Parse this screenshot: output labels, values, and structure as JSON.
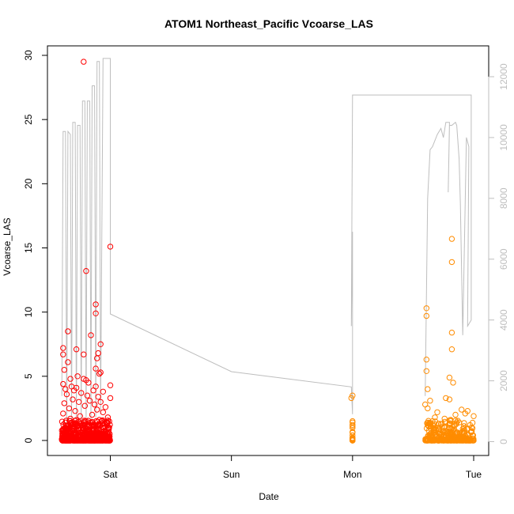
{
  "chart_data": {
    "type": "scatter",
    "title": "ATOM1 Northeast_Pacific Vcoarse_LAS",
    "xlabel": "Date",
    "ylabel": "Vcoarse_LAS",
    "x_ticks": [
      "Sat",
      "Sun",
      "Mon",
      "Tue"
    ],
    "xlim_days": [
      -0.45,
      3.05
    ],
    "ylim": [
      0,
      30
    ],
    "y_ticks": [
      0,
      5,
      10,
      15,
      20,
      25,
      30
    ],
    "y2_ticks": [
      0,
      2000,
      4000,
      6000,
      8000,
      10000,
      12000
    ],
    "y2lim": [
      0,
      12500
    ],
    "grid": false,
    "colors": {
      "series_1": "#ff0000",
      "series_2": "#ff8c00",
      "secondary_line": "#bebebe"
    },
    "series": [
      {
        "color": "#ff0000",
        "marker": "open-circle",
        "axis": "left",
        "x_day_range": [
          -0.4,
          0.0
        ],
        "points": [
          [
            -0.22,
            29.5
          ],
          [
            0.0,
            15.1
          ],
          [
            -0.2,
            13.2
          ],
          [
            -0.12,
            10.6
          ],
          [
            -0.12,
            9.9
          ],
          [
            -0.35,
            8.5
          ],
          [
            -0.16,
            8.2
          ],
          [
            -0.08,
            7.5
          ],
          [
            -0.39,
            7.2
          ],
          [
            -0.28,
            7.1
          ],
          [
            -0.1,
            6.8
          ],
          [
            -0.39,
            6.7
          ],
          [
            -0.22,
            6.7
          ],
          [
            -0.11,
            6.4
          ],
          [
            -0.35,
            6.1
          ],
          [
            -0.12,
            5.6
          ],
          [
            -0.38,
            5.5
          ],
          [
            -0.08,
            5.3
          ],
          [
            -0.09,
            5.2
          ],
          [
            -0.27,
            5.0
          ],
          [
            -0.33,
            4.8
          ],
          [
            -0.22,
            4.8
          ],
          [
            -0.2,
            4.7
          ],
          [
            -0.18,
            4.5
          ],
          [
            -0.39,
            4.4
          ],
          [
            0.0,
            4.3
          ],
          [
            -0.32,
            4.2
          ],
          [
            -0.12,
            4.2
          ],
          [
            -0.28,
            4.1
          ],
          [
            -0.37,
            4.0
          ],
          [
            -0.3,
            3.9
          ],
          [
            -0.14,
            3.9
          ],
          [
            -0.06,
            3.8
          ],
          [
            -0.24,
            3.7
          ],
          [
            -0.36,
            3.6
          ],
          [
            -0.19,
            3.5
          ],
          [
            -0.1,
            3.4
          ],
          [
            0.0,
            3.3
          ],
          [
            -0.31,
            3.2
          ],
          [
            -0.17,
            3.1
          ],
          [
            -0.26,
            3.0
          ],
          [
            -0.08,
            3.0
          ],
          [
            -0.38,
            2.9
          ],
          [
            -0.13,
            2.8
          ],
          [
            -0.21,
            2.7
          ],
          [
            -0.04,
            2.6
          ],
          [
            -0.34,
            2.5
          ],
          [
            -0.11,
            2.4
          ],
          [
            -0.29,
            2.3
          ],
          [
            -0.06,
            2.2
          ],
          [
            -0.39,
            2.1
          ],
          [
            -0.15,
            2.0
          ],
          [
            -0.25,
            1.9
          ],
          [
            -0.02,
            1.8
          ],
          [
            -0.33,
            1.7
          ],
          [
            -0.09,
            1.6
          ],
          [
            -0.2,
            1.5
          ],
          [
            -0.37,
            1.4
          ],
          [
            -0.05,
            1.3
          ],
          [
            -0.27,
            1.2
          ],
          [
            -0.14,
            1.1
          ],
          [
            -0.01,
            1.0
          ],
          [
            -0.36,
            0.9
          ],
          [
            -0.23,
            0.8
          ],
          [
            -0.07,
            0.7
          ],
          [
            -0.3,
            0.6
          ],
          [
            -0.12,
            0.5
          ],
          [
            -0.39,
            0.4
          ],
          [
            -0.18,
            0.3
          ],
          [
            -0.03,
            0.2
          ],
          [
            -0.26,
            0.1
          ],
          [
            -0.1,
            0.05
          ],
          [
            -0.34,
            0.0
          ],
          [
            -0.22,
            0.0
          ],
          [
            -0.06,
            0.0
          ],
          [
            -0.31,
            0.15
          ],
          [
            -0.16,
            0.25
          ],
          [
            -0.01,
            0.35
          ],
          [
            -0.28,
            0.45
          ],
          [
            -0.08,
            0.55
          ],
          [
            -0.38,
            0.65
          ],
          [
            -0.2,
            0.75
          ],
          [
            -0.13,
            0.85
          ],
          [
            -0.35,
            0.95
          ],
          [
            -0.04,
            1.05
          ],
          [
            -0.24,
            1.15
          ],
          [
            -0.1,
            1.25
          ],
          [
            -0.32,
            1.35
          ],
          [
            -0.15,
            1.45
          ],
          [
            -0.02,
            1.55
          ]
        ]
      },
      {
        "color": "#ff8c00",
        "marker": "open-circle",
        "axis": "left",
        "x_day_range": [
          2.0,
          3.0
        ],
        "points": [
          [
            2.82,
            15.7
          ],
          [
            2.82,
            13.9
          ],
          [
            2.61,
            10.3
          ],
          [
            2.61,
            9.7
          ],
          [
            2.82,
            8.4
          ],
          [
            2.82,
            7.1
          ],
          [
            2.61,
            6.3
          ],
          [
            2.61,
            5.4
          ],
          [
            2.8,
            4.9
          ],
          [
            2.62,
            4.0
          ],
          [
            2.83,
            4.5
          ],
          [
            2.0,
            3.5
          ],
          [
            1.99,
            3.3
          ],
          [
            2.77,
            3.3
          ],
          [
            2.8,
            3.2
          ],
          [
            2.64,
            3.1
          ],
          [
            2.6,
            2.8
          ],
          [
            2.62,
            2.5
          ],
          [
            2.95,
            2.3
          ],
          [
            2.7,
            2.2
          ],
          [
            2.93,
            2.1
          ],
          [
            2.85,
            2.0
          ],
          [
            3.0,
            1.9
          ],
          [
            2.68,
            1.8
          ],
          [
            2.76,
            1.7
          ],
          [
            2.0,
            1.5
          ],
          [
            2.0,
            1.4
          ],
          [
            2.66,
            1.5
          ],
          [
            2.88,
            1.4
          ],
          [
            2.73,
            1.3
          ],
          [
            2.97,
            1.2
          ],
          [
            2.63,
            1.1
          ],
          [
            2.8,
            1.0
          ],
          [
            2.91,
            0.9
          ],
          [
            2.69,
            0.8
          ],
          [
            2.0,
            0.6
          ],
          [
            2.0,
            0.4
          ],
          [
            2.78,
            0.7
          ],
          [
            2.86,
            0.6
          ],
          [
            2.72,
            0.5
          ],
          [
            2.99,
            0.4
          ],
          [
            2.65,
            0.3
          ],
          [
            2.83,
            0.25
          ],
          [
            2.94,
            0.2
          ],
          [
            2.7,
            0.15
          ],
          [
            2.0,
            0.2
          ],
          [
            2.0,
            0.1
          ],
          [
            2.0,
            0.0
          ],
          [
            2.61,
            0.0
          ],
          [
            2.75,
            0.0
          ],
          [
            2.89,
            0.0
          ],
          [
            2.96,
            0.05
          ],
          [
            2.64,
            0.1
          ],
          [
            2.79,
            0.35
          ],
          [
            2.87,
            0.45
          ],
          [
            2.71,
            0.55
          ],
          [
            2.98,
            0.65
          ],
          [
            2.67,
            0.75
          ],
          [
            2.84,
            0.85
          ],
          [
            2.92,
            0.95
          ],
          [
            2.74,
            1.05
          ],
          [
            2.62,
            1.2
          ],
          [
            2.81,
            1.6
          ],
          [
            2.9,
            2.4
          ]
        ]
      },
      {
        "color": "#bebebe",
        "marker": "line",
        "axis": "right",
        "points": [
          [
            -0.4,
            1500
          ],
          [
            -0.39,
            10200
          ],
          [
            -0.37,
            10200
          ],
          [
            -0.36,
            500
          ],
          [
            -0.35,
            10200
          ],
          [
            -0.33,
            10100
          ],
          [
            -0.32,
            500
          ],
          [
            -0.31,
            10500
          ],
          [
            -0.29,
            10500
          ],
          [
            -0.28,
            500
          ],
          [
            -0.27,
            10400
          ],
          [
            -0.25,
            10400
          ],
          [
            -0.24,
            600
          ],
          [
            -0.23,
            11200
          ],
          [
            -0.21,
            11200
          ],
          [
            -0.2,
            600
          ],
          [
            -0.19,
            11200
          ],
          [
            -0.17,
            11200
          ],
          [
            -0.16,
            700
          ],
          [
            -0.15,
            11700
          ],
          [
            -0.13,
            11700
          ],
          [
            -0.12,
            800
          ],
          [
            -0.11,
            12500
          ],
          [
            -0.09,
            12500
          ],
          [
            -0.08,
            900
          ],
          [
            -0.06,
            12600
          ],
          [
            0.0,
            12600
          ],
          [
            0.0,
            4200
          ],
          [
            0.0,
            4200
          ],
          [
            1.0,
            2300
          ],
          [
            1.99,
            1800
          ],
          [
            2.0,
            900
          ],
          [
            2.0,
            6900
          ],
          [
            1.99,
            3800
          ],
          [
            2.0,
            11400
          ],
          [
            2.98,
            11400
          ],
          [
            2.98,
            4000
          ],
          [
            2.95,
            3800
          ],
          [
            2.96,
            9700
          ],
          [
            2.94,
            10000
          ],
          [
            2.91,
            3500
          ],
          [
            2.89,
            7800
          ],
          [
            2.88,
            9300
          ],
          [
            2.86,
            10400
          ],
          [
            2.85,
            10500
          ],
          [
            2.82,
            10400
          ],
          [
            2.8,
            10400
          ],
          [
            2.79,
            8200
          ],
          [
            2.8,
            10500
          ],
          [
            2.77,
            10500
          ],
          [
            2.75,
            10000
          ],
          [
            2.73,
            10300
          ],
          [
            2.7,
            10100
          ],
          [
            2.66,
            9700
          ],
          [
            2.64,
            9600
          ],
          [
            2.62,
            8000
          ],
          [
            2.6,
            1500
          ]
        ]
      }
    ]
  }
}
